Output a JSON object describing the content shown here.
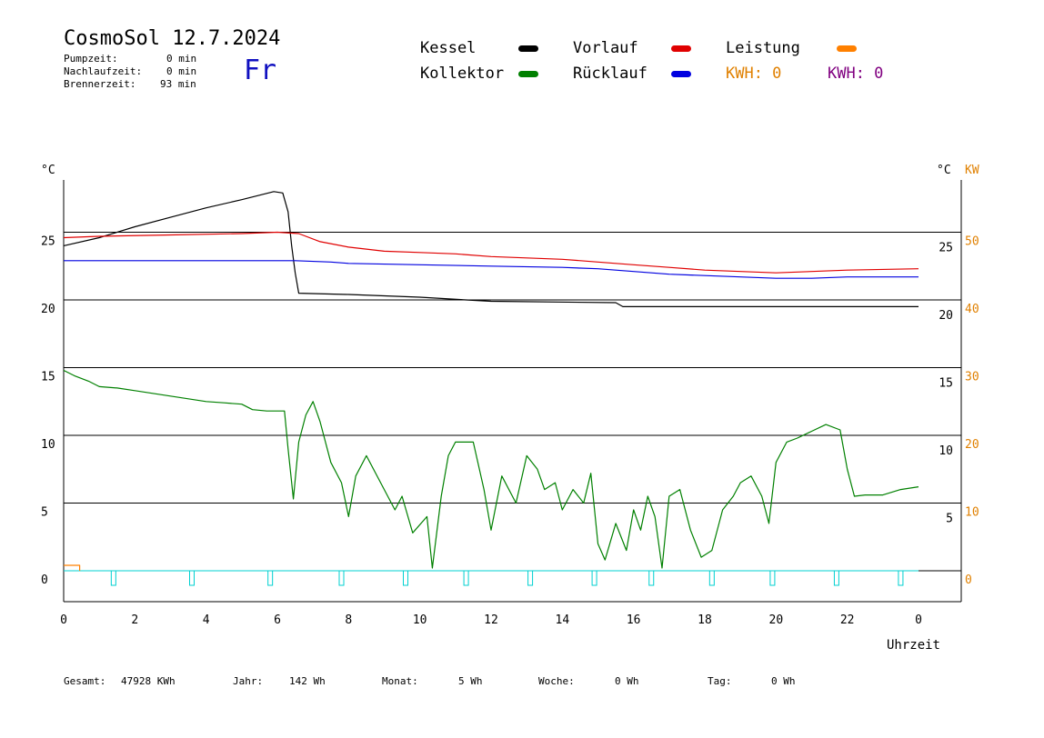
{
  "header": {
    "title": "CosmoSol 12.7.2024",
    "weekday": "Fr",
    "stats": [
      {
        "label": "Pumpzeit:",
        "value": "0 min"
      },
      {
        "label": "Nachlaufzeit:",
        "value": "0 min"
      },
      {
        "label": "Brennerzeit:",
        "value": "93 min"
      }
    ]
  },
  "legend": [
    {
      "name": "Kessel",
      "color": "#000000"
    },
    {
      "name": "Kollektor",
      "color": "#008000"
    },
    {
      "name": "Vorlauf",
      "color": "#e00000"
    },
    {
      "name": "Rücklauf",
      "color": "#0000e0"
    },
    {
      "name": "Leistung",
      "color": "#ff8000"
    }
  ],
  "kwh": [
    {
      "text": "KWH: 0",
      "color": "#ff8000"
    },
    {
      "text": "KWH: 0",
      "color": "#800080"
    }
  ],
  "footer": [
    {
      "label": "Gesamt:",
      "value": "47928 KWh"
    },
    {
      "label": "Jahr:",
      "value": "142 Wh"
    },
    {
      "label": "Monat:",
      "value": "5 Wh"
    },
    {
      "label": "Woche:",
      "value": "0 Wh"
    },
    {
      "label": "Tag:",
      "value": "0 Wh"
    }
  ],
  "chart_data": {
    "type": "line",
    "xlabel": "Uhrzeit",
    "y_left_unit": "°C",
    "y_right_unit": "°C",
    "y_right2_unit": "KW",
    "xlim": [
      0,
      24
    ],
    "x_ticks": [
      "0",
      "2",
      "4",
      "6",
      "8",
      "10",
      "12",
      "14",
      "16",
      "18",
      "20",
      "22",
      "0"
    ],
    "y_left_ticks": [
      "0",
      "5",
      "10",
      "15",
      "20",
      "25"
    ],
    "y_right_ticks": [
      "5",
      "10",
      "15",
      "20",
      "25"
    ],
    "y_right2_ticks": [
      "0",
      "10",
      "20",
      "30",
      "40",
      "50"
    ],
    "grid_lines_y": [
      5,
      10,
      15,
      20,
      25
    ],
    "series": [
      {
        "name": "Kessel",
        "color": "#000000",
        "points": [
          [
            0,
            24.0
          ],
          [
            1,
            24.6
          ],
          [
            2,
            25.4
          ],
          [
            3,
            26.1
          ],
          [
            4,
            26.8
          ],
          [
            5,
            27.4
          ],
          [
            5.9,
            28.0
          ],
          [
            6.15,
            27.9
          ],
          [
            6.3,
            26.5
          ],
          [
            6.4,
            24.0
          ],
          [
            6.5,
            22.0
          ],
          [
            6.6,
            20.5
          ],
          [
            8,
            20.4
          ],
          [
            10,
            20.2
          ],
          [
            11.3,
            20.0
          ],
          [
            12,
            19.9
          ],
          [
            15.5,
            19.8
          ],
          [
            15.7,
            19.5
          ],
          [
            24,
            19.5
          ]
        ]
      },
      {
        "name": "Vorlauf",
        "color": "#e00000",
        "points": [
          [
            0,
            24.6
          ],
          [
            1,
            24.7
          ],
          [
            3,
            24.8
          ],
          [
            5,
            24.9
          ],
          [
            6,
            25.0
          ],
          [
            6.6,
            24.9
          ],
          [
            7.2,
            24.3
          ],
          [
            8,
            23.9
          ],
          [
            9,
            23.6
          ],
          [
            10,
            23.5
          ],
          [
            11,
            23.4
          ],
          [
            12,
            23.2
          ],
          [
            13,
            23.1
          ],
          [
            14,
            23.0
          ],
          [
            15,
            22.8
          ],
          [
            16,
            22.6
          ],
          [
            17,
            22.4
          ],
          [
            18,
            22.2
          ],
          [
            19,
            22.1
          ],
          [
            20,
            22.0
          ],
          [
            21,
            22.1
          ],
          [
            22,
            22.2
          ],
          [
            24,
            22.3
          ]
        ]
      },
      {
        "name": "Rücklauf",
        "color": "#0000e0",
        "points": [
          [
            0,
            22.9
          ],
          [
            2,
            22.9
          ],
          [
            4,
            22.9
          ],
          [
            6.5,
            22.9
          ],
          [
            7.5,
            22.8
          ],
          [
            8,
            22.7
          ],
          [
            10,
            22.6
          ],
          [
            12,
            22.5
          ],
          [
            14,
            22.4
          ],
          [
            15,
            22.3
          ],
          [
            16,
            22.1
          ],
          [
            17,
            21.9
          ],
          [
            18,
            21.8
          ],
          [
            19,
            21.7
          ],
          [
            20,
            21.6
          ],
          [
            21,
            21.6
          ],
          [
            22,
            21.7
          ],
          [
            24,
            21.7
          ]
        ]
      },
      {
        "name": "Kollektor",
        "color": "#008000",
        "points": [
          [
            0,
            14.8
          ],
          [
            0.3,
            14.4
          ],
          [
            0.7,
            14.0
          ],
          [
            1,
            13.6
          ],
          [
            1.5,
            13.5
          ],
          [
            2,
            13.3
          ],
          [
            2.5,
            13.1
          ],
          [
            3,
            12.9
          ],
          [
            3.5,
            12.7
          ],
          [
            4,
            12.5
          ],
          [
            4.5,
            12.4
          ],
          [
            5,
            12.3
          ],
          [
            5.3,
            11.9
          ],
          [
            5.7,
            11.8
          ],
          [
            6.2,
            11.8
          ],
          [
            6.3,
            9.0
          ],
          [
            6.45,
            5.3
          ],
          [
            6.6,
            9.5
          ],
          [
            6.8,
            11.5
          ],
          [
            7,
            12.5
          ],
          [
            7.2,
            11.0
          ],
          [
            7.5,
            8.0
          ],
          [
            7.8,
            6.5
          ],
          [
            8.0,
            4.0
          ],
          [
            8.2,
            7.0
          ],
          [
            8.5,
            8.5
          ],
          [
            9.0,
            6.0
          ],
          [
            9.3,
            4.5
          ],
          [
            9.5,
            5.5
          ],
          [
            9.8,
            2.8
          ],
          [
            10.2,
            4.0
          ],
          [
            10.35,
            0.2
          ],
          [
            10.6,
            5.5
          ],
          [
            10.8,
            8.5
          ],
          [
            11,
            9.5
          ],
          [
            11.5,
            9.5
          ],
          [
            11.8,
            6.0
          ],
          [
            12.0,
            3.0
          ],
          [
            12.3,
            7.0
          ],
          [
            12.7,
            5.0
          ],
          [
            13.0,
            8.5
          ],
          [
            13.3,
            7.5
          ],
          [
            13.5,
            6.0
          ],
          [
            13.8,
            6.5
          ],
          [
            14.0,
            4.5
          ],
          [
            14.3,
            6.0
          ],
          [
            14.6,
            5.0
          ],
          [
            14.8,
            7.2
          ],
          [
            15.0,
            2.0
          ],
          [
            15.2,
            0.8
          ],
          [
            15.5,
            3.5
          ],
          [
            15.8,
            1.5
          ],
          [
            16,
            4.5
          ],
          [
            16.2,
            3.0
          ],
          [
            16.4,
            5.5
          ],
          [
            16.6,
            4.0
          ],
          [
            16.8,
            0.2
          ],
          [
            17.0,
            5.5
          ],
          [
            17.3,
            6.0
          ],
          [
            17.6,
            3.0
          ],
          [
            17.9,
            1.0
          ],
          [
            18.2,
            1.5
          ],
          [
            18.5,
            4.5
          ],
          [
            18.8,
            5.5
          ],
          [
            19.0,
            6.5
          ],
          [
            19.3,
            7.0
          ],
          [
            19.6,
            5.5
          ],
          [
            19.8,
            3.5
          ],
          [
            20.0,
            8.0
          ],
          [
            20.3,
            9.5
          ],
          [
            20.6,
            9.8
          ],
          [
            21.0,
            10.3
          ],
          [
            21.4,
            10.8
          ],
          [
            21.8,
            10.4
          ],
          [
            22.0,
            7.5
          ],
          [
            22.2,
            5.5
          ],
          [
            22.5,
            5.6
          ],
          [
            23.0,
            5.6
          ],
          [
            23.5,
            6.0
          ],
          [
            24,
            6.2
          ]
        ]
      },
      {
        "name": "Leistung",
        "color": "#ff8000",
        "points": [
          [
            0,
            0.4
          ],
          [
            0.45,
            0.4
          ],
          [
            0.45,
            0.0
          ]
        ]
      }
    ],
    "pump_markers_x": [
      1.4,
      3.6,
      5.8,
      7.8,
      9.6,
      11.3,
      13.1,
      14.9,
      16.5,
      18.2,
      19.9,
      21.7,
      23.5
    ]
  }
}
